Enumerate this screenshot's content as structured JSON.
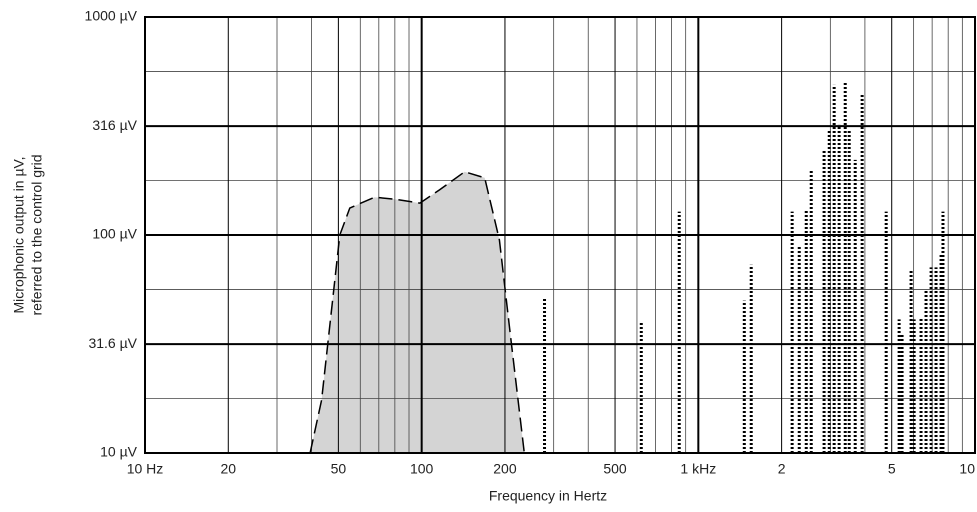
{
  "chart_data": {
    "type": "area",
    "xlabel": "Frequency in Hertz",
    "ylabel": [
      "Microphonic output in µV,",
      "referred to the control grid"
    ],
    "xscale": "log",
    "yscale": "log",
    "grid": true,
    "xlim": [
      10,
      10000
    ],
    "ylim": [
      10,
      1000
    ],
    "xticks": [
      {
        "value": 10,
        "label": "10 Hz"
      },
      20,
      50,
      100,
      200,
      500,
      {
        "value": 1000,
        "label": "1 kHz"
      },
      {
        "value": 2000,
        "label": "2"
      },
      {
        "value": 5000,
        "label": "5"
      },
      {
        "value": 10000,
        "label": "10"
      }
    ],
    "xminor": [
      30,
      40,
      60,
      70,
      80,
      90,
      300,
      400,
      600,
      700,
      800,
      900,
      3000,
      4000,
      6000,
      7000,
      8000,
      9000
    ],
    "yticks": [
      {
        "value": 10,
        "label": "10 µV"
      },
      {
        "value": 31.6,
        "label": "31.6 µV"
      },
      {
        "value": 100,
        "label": "100 µV"
      },
      {
        "value": 316,
        "label": "316 µV"
      },
      {
        "value": 1000,
        "label": "1000 µV"
      }
    ],
    "yminor": [
      17.8,
      56.2,
      178,
      562
    ],
    "area": {
      "color": "#d4d4d4",
      "x": [
        39.5,
        43.5,
        50.6,
        55,
        67.6,
        80,
        98.5,
        116,
        143,
        169,
        191,
        208,
        235
      ],
      "values": [
        10,
        17.5,
        100,
        133,
        149,
        146,
        140,
        161,
        195,
        183,
        95,
        37,
        10
      ]
    },
    "spikes": {
      "color": "#000000",
      "x": [
        278,
        622,
        853,
        1466,
        1553,
        2183,
        2316,
        2455,
        2559,
        2848,
        2973,
        3097,
        3228,
        3396,
        3510,
        3690,
        3909,
        4775,
        5318,
        5450,
        5875,
        6025,
        6383,
        6653,
        6940,
        7230,
        7540,
        7660
      ],
      "values": [
        51,
        40,
        128,
        50,
        73,
        128,
        90,
        130,
        199,
        245,
        303,
        488,
        320,
        503,
        303,
        221,
        439,
        128,
        41,
        35,
        69,
        41,
        42,
        56,
        71,
        71,
        81,
        128
      ]
    }
  }
}
